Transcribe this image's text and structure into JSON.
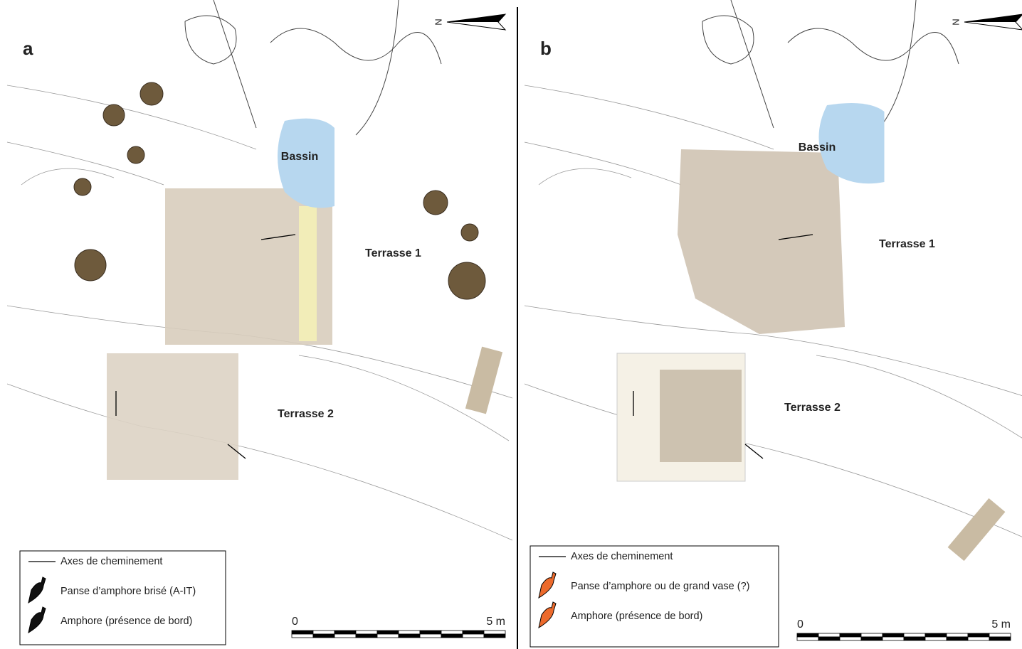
{
  "panels": [
    {
      "label": "a",
      "north": "N",
      "places": [
        "Bassin",
        "Terrasse 1",
        "Terrasse 2"
      ],
      "legend": [
        "Axes de cheminement",
        "Panse d’amphore brisé (A-IT)",
        "Amphore (présence de bord)"
      ],
      "scale": {
        "start": "0",
        "end": "5 m"
      }
    },
    {
      "label": "b",
      "north": "N",
      "places": [
        "Bassin",
        "Terrasse 1",
        "Terrasse 2"
      ],
      "legend": [
        "Axes de cheminement",
        "Panse d’amphore ou de grand vase (?)",
        "Amphore (présence de bord)"
      ],
      "scale": {
        "start": "0",
        "end": "5 m"
      }
    }
  ]
}
